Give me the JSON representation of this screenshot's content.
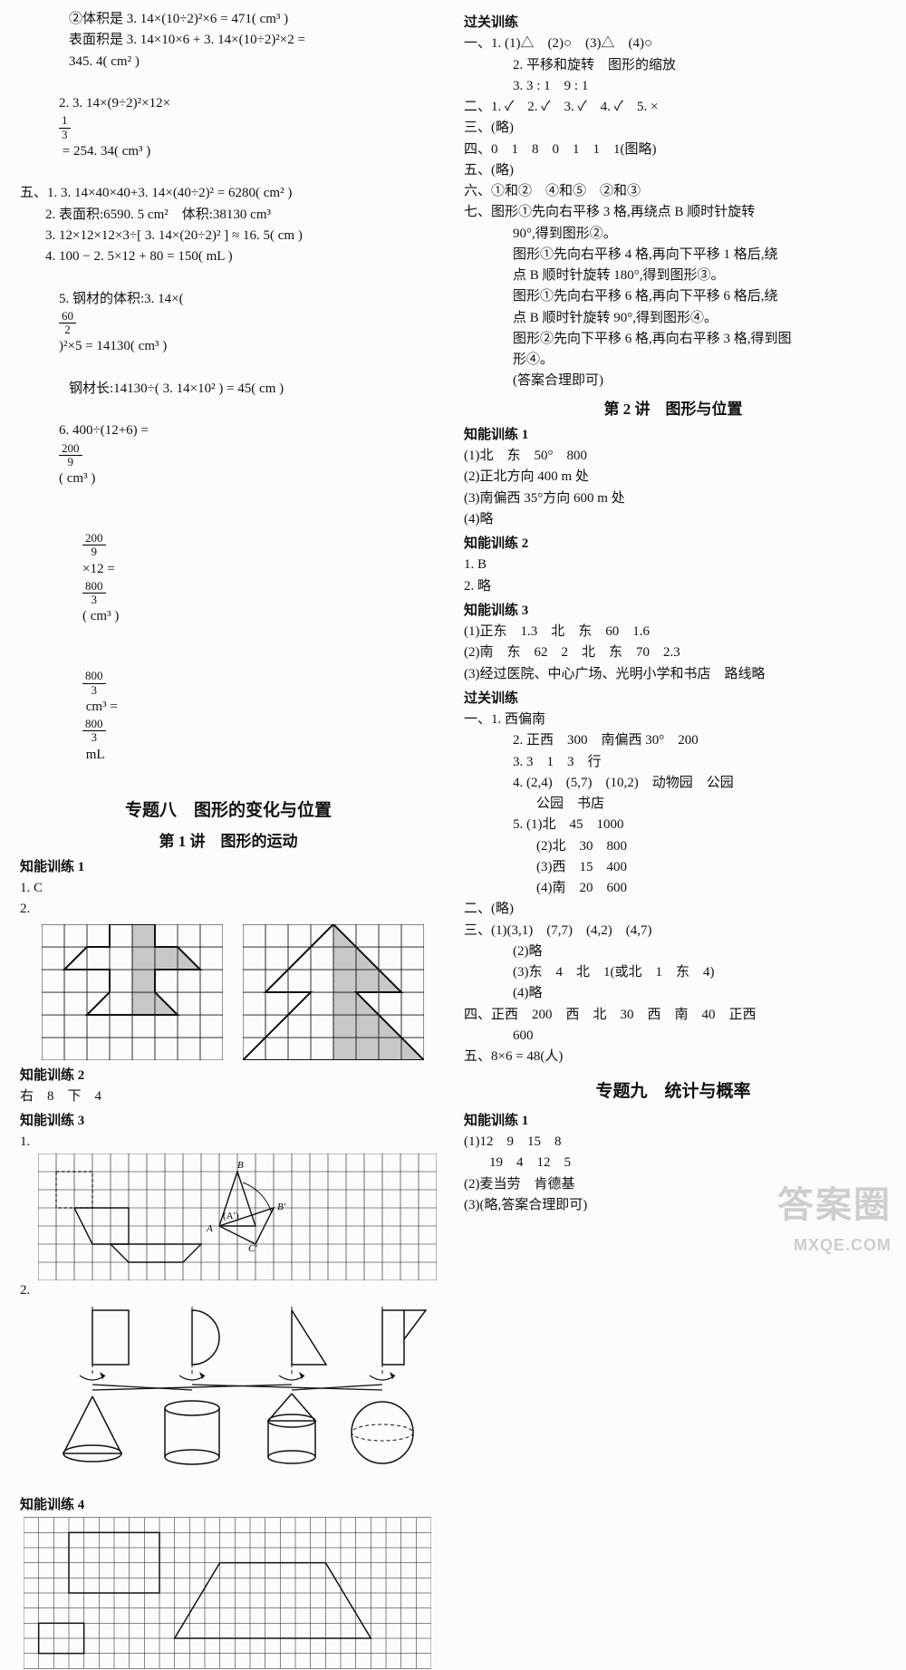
{
  "left": {
    "l1": "②体积是 3. 14×(10÷2)²×6 = 471( cm³ )",
    "l2": "表面积是 3. 14×10×6 + 3. 14×(10÷2)²×2 =",
    "l3": "345. 4( cm² )",
    "l4_pre": "2. 3. 14×(9÷2)²×12×",
    "l4_n": "1",
    "l4_d": "3",
    "l4_post": " = 254. 34( cm³ )",
    "l5": "五、1. 3. 14×40×40+3. 14×(40÷2)² = 6280( cm² )",
    "l6": "2. 表面积:6590. 5 cm²　体积:38130 cm³",
    "l7": "3. 12×12×12×3÷[ 3. 14×(20÷2)² ] ≈ 16. 5( cm )",
    "l8": "4. 100 − 2. 5×12 + 80 = 150( mL )",
    "l9_pre": "5. 钢材的体积:3. 14×(",
    "l9_n": "60",
    "l9_d": "2",
    "l9_post": ")²×5 = 14130( cm³ )",
    "l10": "钢材长:14130÷( 3. 14×10² ) = 45( cm )",
    "l11_pre": "6. 400÷(12+6) = ",
    "l11_n": "200",
    "l11_d": "9",
    "l11_post": "( cm³ )",
    "l12_n1": "200",
    "l12_d1": "9",
    "l12_mid": "×12 = ",
    "l12_n2": "800",
    "l12_d2": "3",
    "l12_post": "( cm³ )",
    "l13_n1": "800",
    "l13_d1": "3",
    "l13_mid": " cm³ = ",
    "l13_n2": "800",
    "l13_d2": "3",
    "l13_post": " mL",
    "title8": "专题八　图形的变化与位置",
    "sec1": "第 1 讲　图形的运动",
    "zn1": "知能训练 1",
    "zn1_1": "1. C",
    "zn1_2": "2.",
    "zn2": "知能训练 2",
    "zn2_1": "右　8　下　4",
    "zn3": "知能训练 3",
    "zn3_1": "1.",
    "zn3_2": "2.",
    "zn4": "知能训练 4",
    "fig3_labels": {
      "A": "A",
      "Ap": "(A′)",
      "B": "B",
      "Bp": "B′",
      "Cp": "C′"
    }
  },
  "right": {
    "gg": "过关训练",
    "r1": "一、1. (1)△　(2)○　(3)△　(4)○",
    "r2": "2. 平移和旋转　图形的缩放",
    "r3": "3. 3 : 1　9 : 1",
    "r4": "二、1. ✓　2. ✓　3. ✓　4. ✓　5. ×",
    "r5": "三、(略)",
    "r6": "四、0　1　8　0　1　1　1(图略)",
    "r7": "五、(略)",
    "r8": "六、①和②　④和⑤　②和③",
    "r9": "七、图形①先向右平移 3 格,再绕点 B 顺时针旋转",
    "r9b": "90°,得到图形②。",
    "r10": "图形①先向右平移 4 格,再向下平移 1 格后,绕",
    "r10b": "点 B 顺时针旋转 180°,得到图形③。",
    "r11": "图形①先向右平移 6 格,再向下平移 6 格后,绕",
    "r11b": "点 B 顺时针旋转 90°,得到图形④。",
    "r12": "图形②先向下平移 6 格,再向右平移 3 格,得到图",
    "r12b": "形④。",
    "r13": "(答案合理即可)",
    "sec2": "第 2 讲　图形与位置",
    "zn1": "知能训练 1",
    "z1_1": "(1)北　东　50°　800",
    "z1_2": "(2)正北方向 400 m 处",
    "z1_3": "(3)南偏西 35°方向 600 m 处",
    "z1_4": "(4)略",
    "zn2": "知能训练 2",
    "z2_1": "1. B",
    "z2_2": "2. 略",
    "zn3": "知能训练 3",
    "z3_1": "(1)正东　1.3　北　东　60　1.6",
    "z3_2": "(2)南　东　62　2　北　东　70　2.3",
    "z3_3": "(3)经过医院、中心广场、光明小学和书店　路线略",
    "gg2": "过关训练",
    "g1": "一、1. 西偏南",
    "g2": "2. 正西　300　南偏西 30°　200",
    "g3": "3. 3　1　3　行",
    "g4": "4. (2,4)　(5,7)　(10,2)　动物园　公园",
    "g4b": "公园　书店",
    "g5": "5. (1)北　45　1000",
    "g5b": "(2)北　30　800",
    "g5c": "(3)西　15　400",
    "g5d": "(4)南　20　600",
    "g6": "二、(略)",
    "g7": "三、(1)(3,1)　(7,7)　(4,2)　(4,7)",
    "g7b": "(2)略",
    "g7c": "(3)东　4　北　1(或北　1　东　4)",
    "g7d": "(4)略",
    "g8": "四、正西　200　西　北　30　西　南　40　正西",
    "g8b": "600",
    "g9": "五、8×6 = 48(人)",
    "title9": "专题九　统计与概率",
    "zn9": "知能训练 1",
    "n1": "(1)12　9　15　8",
    "n1b": "19　4　12　5",
    "n2": "(2)麦当劳　肯德基",
    "n3": "(3)(略,答案合理即可)"
  },
  "watermark": {
    "top": "答案圈",
    "bottom": "MXQE.COM"
  },
  "style": {
    "grid_stroke": "#111",
    "grid_w": 0.7,
    "shape_stroke": "#111",
    "shape_w": 1.5,
    "fill_gray": "#c7c7c7",
    "bg": "#fcfcfa"
  }
}
